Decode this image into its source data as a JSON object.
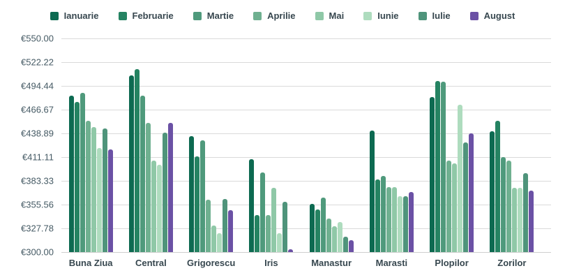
{
  "theme": {
    "background": "#ffffff",
    "grid_color": "#dadada",
    "baseline_color": "#cfcfcf",
    "y_label_color": "#455a64",
    "x_label_color": "#37474f",
    "legend_text_color": "#37474f"
  },
  "chart_data": {
    "type": "bar",
    "title": "",
    "xlabel": "",
    "ylabel": "",
    "legend_position": "top",
    "grid": true,
    "categories": [
      "Buna Ziua",
      "Central",
      "Grigorescu",
      "Iris",
      "Manastur",
      "Marasti",
      "Plopilor",
      "Zorilor"
    ],
    "series": [
      {
        "name": "Ianuarie",
        "color": "#0d6a51",
        "values": [
          483,
          507,
          436,
          409,
          356,
          442,
          481,
          441
        ]
      },
      {
        "name": "Februarie",
        "color": "#258362",
        "values": [
          476,
          514,
          412,
          343,
          350,
          385,
          500,
          454
        ]
      },
      {
        "name": "Martie",
        "color": "#4f9a7c",
        "values": [
          486,
          483,
          431,
          393,
          364,
          389,
          499,
          411
        ]
      },
      {
        "name": "Aprilie",
        "color": "#6fb090",
        "values": [
          454,
          451,
          361,
          343,
          339,
          376,
          407,
          407
        ]
      },
      {
        "name": "Mai",
        "color": "#8fc8a7",
        "values": [
          446,
          407,
          331,
          375,
          330,
          376,
          404,
          375
        ]
      },
      {
        "name": "Iunie",
        "color": "#aedcbe",
        "values": [
          422,
          402,
          322,
          322,
          335,
          365,
          472,
          375
        ]
      },
      {
        "name": "Iulie",
        "color": "#4f947b",
        "values": [
          445,
          440,
          362,
          359,
          318,
          365,
          428,
          392
        ]
      },
      {
        "name": "August",
        "color": "#6b51a5",
        "values": [
          420,
          451,
          349,
          303,
          314,
          370,
          439,
          372
        ]
      }
    ],
    "y_axis": {
      "min": 300,
      "max": 550,
      "tick_values": [
        550,
        522.22,
        494.44,
        466.67,
        438.89,
        411.11,
        383.33,
        355.56,
        327.78,
        300
      ],
      "tick_labels": [
        "€550.00",
        "€522.22",
        "€494.44",
        "€466.67",
        "€438.89",
        "€411.11",
        "€383.33",
        "€355.56",
        "€327.78",
        "€300.00"
      ]
    }
  }
}
